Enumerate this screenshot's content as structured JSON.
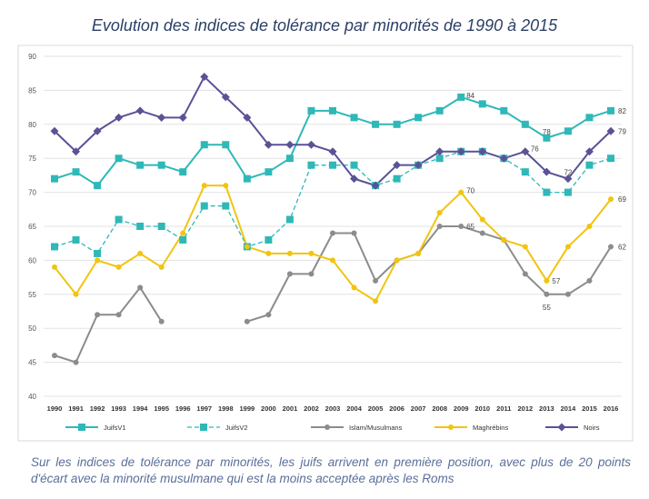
{
  "chart_data": {
    "type": "line",
    "title": "Evolution des indices de tolérance par minorités de 1990 à 2015",
    "xlabel": "",
    "ylabel": "",
    "ylim": [
      40,
      90
    ],
    "yticks": [
      40,
      45,
      50,
      55,
      60,
      65,
      70,
      75,
      80,
      85,
      90
    ],
    "categories": [
      "1990",
      "1991",
      "1992",
      "1993",
      "1994",
      "1995",
      "1996",
      "1997",
      "1998",
      "1999",
      "2000",
      "2001",
      "2002",
      "2003",
      "2004",
      "2005",
      "2006",
      "2007",
      "2008",
      "2009",
      "2010",
      "2011",
      "2012",
      "2013",
      "2014",
      "2015",
      "2016"
    ],
    "grid": "horizontal",
    "legend_position": "bottom",
    "series": [
      {
        "name": "JuifsV1",
        "color": "#2fb8b8",
        "style": "solid",
        "marker": "square",
        "values": [
          72,
          73,
          71,
          75,
          74,
          74,
          73,
          77,
          77,
          72,
          73,
          75,
          82,
          82,
          81,
          80,
          80,
          81,
          82,
          84,
          83,
          82,
          80,
          78,
          79,
          81,
          82
        ]
      },
      {
        "name": "JuifsV2",
        "color": "#2fb8b8",
        "style": "dashed",
        "marker": "square",
        "values": [
          62,
          63,
          61,
          66,
          65,
          65,
          63,
          68,
          68,
          62,
          63,
          66,
          74,
          74,
          74,
          71,
          72,
          74,
          75,
          76,
          76,
          75,
          73,
          70,
          70,
          74,
          75
        ]
      },
      {
        "name": "Islam/Musulmans",
        "color": "#8c8c8c",
        "style": "solid",
        "marker": "circle",
        "values": [
          46,
          45,
          52,
          52,
          56,
          51,
          null,
          null,
          null,
          51,
          52,
          58,
          58,
          64,
          64,
          57,
          60,
          61,
          65,
          65,
          64,
          63,
          58,
          55,
          55,
          57,
          62
        ]
      },
      {
        "name": "Maghrébins",
        "color": "#f2c40f",
        "style": "solid",
        "marker": "circle",
        "values": [
          59,
          55,
          60,
          59,
          61,
          59,
          64,
          71,
          71,
          62,
          61,
          61,
          61,
          60,
          56,
          54,
          60,
          61,
          67,
          70,
          66,
          63,
          62,
          57,
          62,
          65,
          69
        ]
      },
      {
        "name": "Noirs",
        "color": "#5a5296",
        "style": "solid",
        "marker": "diamond",
        "values": [
          79,
          76,
          79,
          81,
          82,
          81,
          81,
          87,
          84,
          81,
          77,
          77,
          77,
          76,
          72,
          71,
          74,
          74,
          76,
          76,
          76,
          75,
          76,
          73,
          72,
          76,
          79
        ]
      }
    ],
    "annotations": [
      {
        "series": "JuifsV1",
        "category": "2009",
        "text": "84"
      },
      {
        "series": "JuifsV1",
        "category": "2013",
        "text": "78"
      },
      {
        "series": "JuifsV1",
        "category": "2016",
        "text": "82"
      },
      {
        "series": "Noirs",
        "category": "2012",
        "text": "76"
      },
      {
        "series": "Noirs",
        "category": "2014",
        "text": "72"
      },
      {
        "series": "Noirs",
        "category": "2016",
        "text": "79"
      },
      {
        "series": "Maghrébins",
        "category": "2009",
        "text": "70"
      },
      {
        "series": "Maghrébins",
        "category": "2013",
        "text": "57"
      },
      {
        "series": "Maghrébins",
        "category": "2016",
        "text": "69"
      },
      {
        "series": "Islam/Musulmans",
        "category": "2009",
        "text": "65"
      },
      {
        "series": "Islam/Musulmans",
        "category": "2013",
        "text": "55"
      },
      {
        "series": "Islam/Musulmans",
        "category": "2016",
        "text": "62"
      }
    ]
  },
  "caption": "Sur les indices de tolérance par minorités, les juifs arrivent en première position, avec plus de 20 points d'écart avec la minorité musulmane qui est la moins acceptée après les Roms"
}
